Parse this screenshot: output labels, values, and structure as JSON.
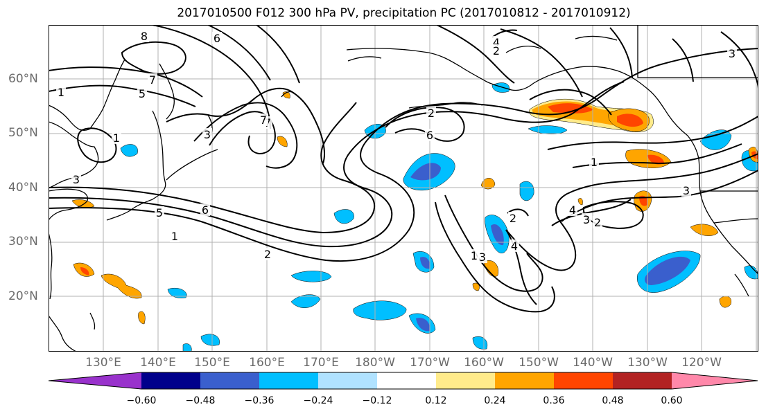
{
  "title": "2017010500 F012 300 hPa PV, precipitation PC (2017010812 - 2017010912)",
  "lat_labels": [
    "60°N",
    "50°N",
    "40°N",
    "30°N",
    "20°N"
  ],
  "lon_labels": [
    "130°E",
    "140°E",
    "150°E",
    "160°E",
    "170°E",
    "180°W",
    "170°W",
    "160°W",
    "150°W",
    "140°W",
    "130°W",
    "120°W"
  ],
  "contour_labels": [
    "8",
    "6",
    "7",
    "5",
    "7",
    "1",
    "1",
    "3",
    "6",
    "5",
    "1",
    "2",
    "3",
    "7",
    "2",
    "6",
    "4",
    "2",
    "1",
    "3",
    "2",
    "4",
    "3",
    "2",
    "4",
    "1",
    "3",
    "3"
  ],
  "colorbar": {
    "ticks": [
      "−0.60",
      "−0.48",
      "−0.36",
      "−0.24",
      "−0.12",
      "0.12",
      "0.24",
      "0.36",
      "0.48",
      "0.60"
    ],
    "colors": [
      "#9932cc",
      "#00008b",
      "#3a5fcd",
      "#00bfff",
      "#b0e2ff",
      "#ffffff",
      "#ffeb8b",
      "#ffa500",
      "#ff4500",
      "#b22222",
      "#ff88aa"
    ]
  }
}
